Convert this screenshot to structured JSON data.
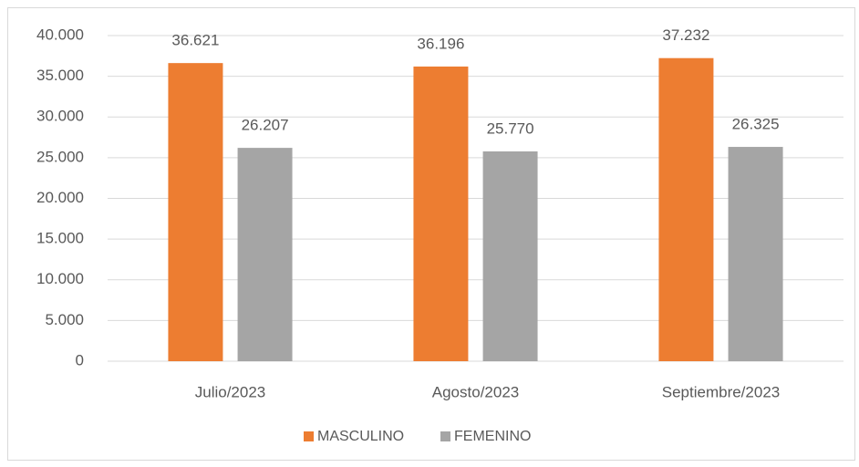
{
  "chart_data": {
    "type": "bar",
    "categories": [
      "Julio/2023",
      "Agosto/2023",
      "Septiembre/2023"
    ],
    "series": [
      {
        "name": "MASCULINO",
        "color": "#ED7D31",
        "values": [
          36621,
          36196,
          37232
        ],
        "value_labels": [
          "36.621",
          "36.196",
          "37.232"
        ]
      },
      {
        "name": "FEMENINO",
        "color": "#A5A5A5",
        "values": [
          26207,
          25770,
          26325
        ],
        "value_labels": [
          "26.207",
          "25.770",
          "26.325"
        ]
      }
    ],
    "ylim": [
      0,
      40000
    ],
    "yticks": [
      0,
      {
        "value": 5000,
        "label": "5.000"
      },
      {
        "value": 10000,
        "label": "10.000"
      },
      {
        "value": 15000,
        "label": "15.000"
      },
      {
        "value": 20000,
        "label": "20.000"
      },
      {
        "value": 25000,
        "label": "25.000"
      },
      {
        "value": 30000,
        "label": "30.000"
      },
      {
        "value": 35000,
        "label": "35.000"
      },
      {
        "value": 40000,
        "label": "40.000"
      }
    ],
    "grid": true,
    "legend": "bottom"
  }
}
